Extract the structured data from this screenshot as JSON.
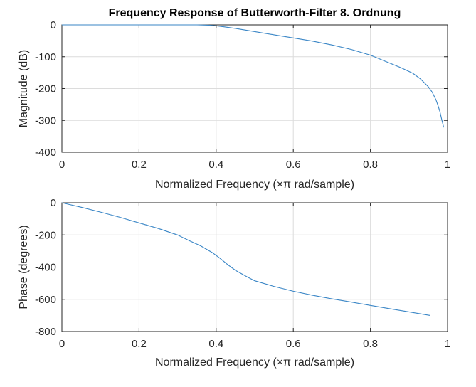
{
  "title": "Frequency Response of Butterworth-Filter 8. Ordnung",
  "chart_data": [
    {
      "type": "line",
      "title": "Frequency Response of Butterworth-Filter 8. Ordnung",
      "xlabel": "Normalized Frequency  (×π rad/sample)",
      "ylabel": "Magnitude (dB)",
      "xlim": [
        0,
        1
      ],
      "ylim": [
        -400,
        0
      ],
      "xticks": [
        0,
        0.2,
        0.4,
        0.6,
        0.8,
        1
      ],
      "xtick_labels": [
        "0",
        "0.2",
        "0.4",
        "0.6",
        "0.8",
        "1"
      ],
      "yticks": [
        0,
        -100,
        -200,
        -300,
        -400
      ],
      "ytick_labels": [
        "0",
        "-100",
        "-200",
        "-300",
        "-400"
      ],
      "grid": true,
      "color": "#3a86c6",
      "series": [
        {
          "x": [
            0,
            0.1,
            0.2,
            0.3,
            0.35,
            0.38,
            0.4,
            0.42,
            0.45,
            0.5,
            0.55,
            0.6,
            0.65,
            0.7,
            0.75,
            0.8,
            0.84,
            0.88,
            0.91,
            0.93,
            0.95,
            0.96,
            0.97,
            0.975,
            0.98,
            0.985,
            0.99
          ],
          "y": [
            0,
            0,
            0,
            0,
            0,
            -1,
            -3,
            -6,
            -11,
            -21,
            -31,
            -41,
            -51,
            -63,
            -77,
            -95,
            -115,
            -135,
            -152,
            -170,
            -194,
            -211,
            -235,
            -252,
            -272,
            -298,
            -322
          ]
        }
      ]
    },
    {
      "type": "line",
      "xlabel": "Normalized Frequency  (×π rad/sample)",
      "ylabel": "Phase (degrees)",
      "xlim": [
        0,
        1
      ],
      "ylim": [
        -800,
        0
      ],
      "xticks": [
        0,
        0.2,
        0.4,
        0.6,
        0.8,
        1
      ],
      "xtick_labels": [
        "0",
        "0.2",
        "0.4",
        "0.6",
        "0.8",
        "1"
      ],
      "yticks": [
        0,
        -200,
        -400,
        -600,
        -800
      ],
      "ytick_labels": [
        "0",
        "-200",
        "-400",
        "-600",
        "-800"
      ],
      "grid": true,
      "color": "#3a86c6",
      "series": [
        {
          "x": [
            0,
            0.05,
            0.1,
            0.15,
            0.2,
            0.25,
            0.3,
            0.33,
            0.36,
            0.39,
            0.41,
            0.43,
            0.45,
            0.48,
            0.5,
            0.55,
            0.6,
            0.65,
            0.7,
            0.75,
            0.8,
            0.85,
            0.9,
            0.955
          ],
          "y": [
            0,
            -28,
            -58,
            -90,
            -125,
            -160,
            -200,
            -235,
            -268,
            -310,
            -345,
            -385,
            -420,
            -460,
            -485,
            -520,
            -550,
            -575,
            -597,
            -617,
            -638,
            -658,
            -678,
            -700
          ]
        }
      ]
    }
  ]
}
